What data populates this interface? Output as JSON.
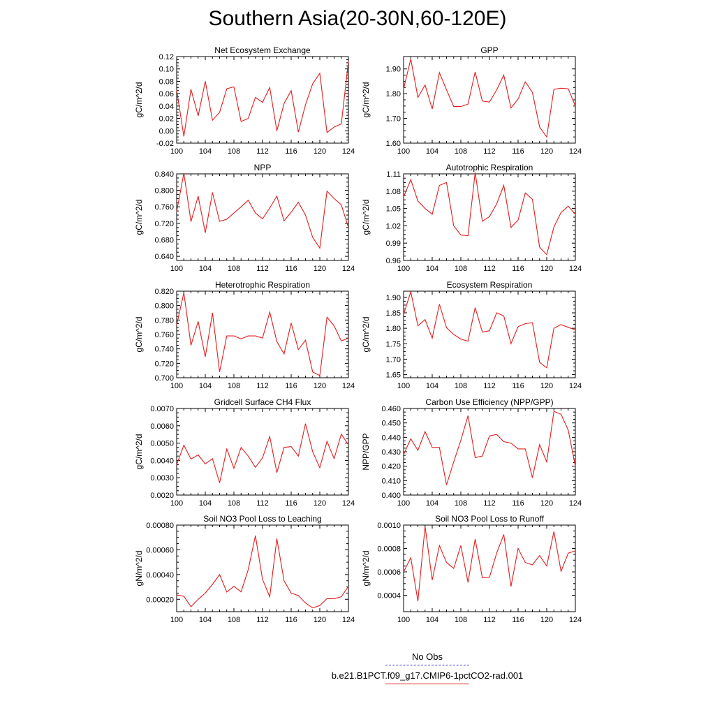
{
  "figure": {
    "title": "Southern Asia(20-30N,60-120E)",
    "legend": [
      {
        "label": "No Obs",
        "color": "#2a2ad8",
        "style": "dashed"
      },
      {
        "label": "b.e21.B1PCT.f09_g17.CMIP6-1pctCO2-rad.001",
        "color": "#e21d1d",
        "style": "solid"
      }
    ]
  },
  "chart_data": [
    {
      "type": "line",
      "title": "Net Ecosystem Exchange",
      "ylabel": "gC/m^2/d",
      "xlim": [
        100,
        124
      ],
      "ylim": [
        -0.02,
        0.12
      ],
      "xticks": [
        "100",
        "104",
        "108",
        "112",
        "116",
        "120",
        "124"
      ],
      "yticks": [
        "-0.02",
        "0.00",
        "0.02",
        "0.04",
        "0.06",
        "0.08",
        "0.10",
        "0.12"
      ],
      "x": [
        100,
        101,
        102,
        103,
        104,
        105,
        106,
        107,
        108,
        109,
        110,
        111,
        112,
        113,
        114,
        115,
        116,
        117,
        118,
        119,
        120,
        121,
        122,
        123,
        124
      ],
      "series": [
        {
          "color": "#e21d1d",
          "values": [
            0.066,
            -0.009,
            0.067,
            0.024,
            0.08,
            0.017,
            0.03,
            0.068,
            0.071,
            0.015,
            0.02,
            0.054,
            0.046,
            0.07,
            0.0,
            0.044,
            0.065,
            -0.002,
            0.042,
            0.076,
            0.093,
            -0.003,
            0.006,
            0.011,
            0.112
          ]
        }
      ]
    },
    {
      "type": "line",
      "title": "GPP",
      "ylabel": "gC/m^2/d",
      "xlim": [
        100,
        124
      ],
      "ylim": [
        1.6,
        1.95
      ],
      "xticks": [
        "100",
        "104",
        "108",
        "112",
        "116",
        "120",
        "124"
      ],
      "yticks": [
        "1.60",
        "1.70",
        "1.80",
        "1.90"
      ],
      "x": [
        100,
        101,
        102,
        103,
        104,
        105,
        106,
        107,
        108,
        109,
        110,
        111,
        112,
        113,
        114,
        115,
        116,
        117,
        118,
        119,
        120,
        121,
        122,
        123,
        124
      ],
      "series": [
        {
          "color": "#e21d1d",
          "values": [
            1.82,
            1.94,
            1.785,
            1.835,
            1.738,
            1.885,
            1.815,
            1.748,
            1.748,
            1.758,
            1.888,
            1.77,
            1.766,
            1.815,
            1.875,
            1.742,
            1.778,
            1.848,
            1.805,
            1.665,
            1.625,
            1.818,
            1.822,
            1.82,
            1.75
          ]
        }
      ]
    },
    {
      "type": "line",
      "title": "NPP",
      "ylabel": "gC/m^2/d",
      "xlim": [
        100,
        124
      ],
      "ylim": [
        0.63,
        0.84
      ],
      "xticks": [
        "100",
        "104",
        "108",
        "112",
        "116",
        "120",
        "124"
      ],
      "yticks": [
        "0.640",
        "0.680",
        "0.720",
        "0.760",
        "0.800",
        "0.840"
      ],
      "x": [
        100,
        101,
        102,
        103,
        104,
        105,
        106,
        107,
        108,
        109,
        110,
        111,
        112,
        113,
        114,
        115,
        116,
        117,
        118,
        119,
        120,
        121,
        122,
        123,
        124
      ],
      "series": [
        {
          "color": "#e21d1d",
          "values": [
            0.748,
            0.842,
            0.724,
            0.786,
            0.697,
            0.795,
            0.725,
            0.73,
            0.745,
            0.76,
            0.776,
            0.745,
            0.731,
            0.757,
            0.786,
            0.726,
            0.747,
            0.771,
            0.74,
            0.686,
            0.66,
            0.798,
            0.78,
            0.765,
            0.71
          ]
        }
      ]
    },
    {
      "type": "line",
      "title": "Autotrophic Respiration",
      "ylabel": "gC/m^2/d",
      "xlim": [
        100,
        124
      ],
      "ylim": [
        0.96,
        1.11
      ],
      "xticks": [
        "100",
        "104",
        "108",
        "112",
        "116",
        "120",
        "124"
      ],
      "yticks": [
        "0.96",
        "0.99",
        "1.02",
        "1.05",
        "1.08",
        "1.11"
      ],
      "x": [
        100,
        101,
        102,
        103,
        104,
        105,
        106,
        107,
        108,
        109,
        110,
        111,
        112,
        113,
        114,
        115,
        116,
        117,
        118,
        119,
        120,
        121,
        122,
        123,
        124
      ],
      "series": [
        {
          "color": "#e21d1d",
          "values": [
            1.07,
            1.1,
            1.063,
            1.05,
            1.04,
            1.09,
            1.095,
            1.02,
            1.004,
            1.003,
            1.112,
            1.028,
            1.036,
            1.058,
            1.09,
            1.017,
            1.03,
            1.077,
            1.066,
            0.983,
            0.97,
            1.018,
            1.043,
            1.054,
            1.04
          ]
        }
      ]
    },
    {
      "type": "line",
      "title": "Heterotrophic Respiration",
      "ylabel": "gC/m^2/d",
      "xlim": [
        100,
        124
      ],
      "ylim": [
        0.7,
        0.82
      ],
      "xticks": [
        "100",
        "104",
        "108",
        "112",
        "116",
        "120",
        "124"
      ],
      "yticks": [
        "0.700",
        "0.720",
        "0.740",
        "0.760",
        "0.780",
        "0.800",
        "0.820"
      ],
      "x": [
        100,
        101,
        102,
        103,
        104,
        105,
        106,
        107,
        108,
        109,
        110,
        111,
        112,
        113,
        114,
        115,
        116,
        117,
        118,
        119,
        120,
        121,
        122,
        123,
        124
      ],
      "series": [
        {
          "color": "#e21d1d",
          "values": [
            0.773,
            0.818,
            0.745,
            0.778,
            0.729,
            0.79,
            0.708,
            0.758,
            0.758,
            0.754,
            0.758,
            0.758,
            0.755,
            0.791,
            0.75,
            0.733,
            0.776,
            0.739,
            0.752,
            0.708,
            0.703,
            0.784,
            0.772,
            0.751,
            0.755
          ]
        }
      ]
    },
    {
      "type": "line",
      "title": "Ecosystem Respiration",
      "ylabel": "gC/m^2/d",
      "xlim": [
        100,
        124
      ],
      "ylim": [
        1.64,
        1.92
      ],
      "xticks": [
        "100",
        "104",
        "108",
        "112",
        "116",
        "120",
        "124"
      ],
      "yticks": [
        "1.65",
        "1.70",
        "1.75",
        "1.80",
        "1.85",
        "1.90"
      ],
      "x": [
        100,
        101,
        102,
        103,
        104,
        105,
        106,
        107,
        108,
        109,
        110,
        111,
        112,
        113,
        114,
        115,
        116,
        117,
        118,
        119,
        120,
        121,
        122,
        123,
        124
      ],
      "series": [
        {
          "color": "#e21d1d",
          "values": [
            1.845,
            1.918,
            1.808,
            1.828,
            1.768,
            1.878,
            1.802,
            1.78,
            1.765,
            1.758,
            1.867,
            1.788,
            1.792,
            1.85,
            1.84,
            1.75,
            1.805,
            1.815,
            1.818,
            1.69,
            1.672,
            1.8,
            1.812,
            1.803,
            1.795
          ]
        }
      ]
    },
    {
      "type": "line",
      "title": "Gridcell Surface CH4 Flux",
      "ylabel": "gC/m^2/d",
      "xlim": [
        100,
        124
      ],
      "ylim": [
        0.002,
        0.007
      ],
      "xticks": [
        "100",
        "104",
        "108",
        "112",
        "116",
        "120",
        "124"
      ],
      "yticks": [
        "0.0020",
        "0.0030",
        "0.0040",
        "0.0050",
        "0.0060",
        "0.0070"
      ],
      "x": [
        100,
        101,
        102,
        103,
        104,
        105,
        106,
        107,
        108,
        109,
        110,
        111,
        112,
        113,
        114,
        115,
        116,
        117,
        118,
        119,
        120,
        121,
        122,
        123,
        124
      ],
      "series": [
        {
          "color": "#e21d1d",
          "values": [
            0.00375,
            0.00488,
            0.00408,
            0.00432,
            0.0038,
            0.0041,
            0.0027,
            0.00466,
            0.00355,
            0.00475,
            0.00425,
            0.0036,
            0.00415,
            0.00538,
            0.0033,
            0.00475,
            0.0048,
            0.00425,
            0.00612,
            0.0045,
            0.00358,
            0.0051,
            0.0041,
            0.00552,
            0.0049
          ]
        }
      ]
    },
    {
      "type": "line",
      "title": "Carbon Use Efficiency (NPP/GPP)",
      "ylabel": "NPP/GPP",
      "xlim": [
        100,
        124
      ],
      "ylim": [
        0.4,
        0.46
      ],
      "xticks": [
        "100",
        "104",
        "108",
        "112",
        "116",
        "120",
        "124"
      ],
      "yticks": [
        "0.400",
        "0.410",
        "0.420",
        "0.430",
        "0.440",
        "0.450",
        "0.460"
      ],
      "x": [
        100,
        101,
        102,
        103,
        104,
        105,
        106,
        107,
        108,
        109,
        110,
        111,
        112,
        113,
        114,
        115,
        116,
        117,
        118,
        119,
        120,
        121,
        122,
        123,
        124
      ],
      "series": [
        {
          "color": "#e21d1d",
          "values": [
            0.428,
            0.439,
            0.431,
            0.444,
            0.433,
            0.433,
            0.407,
            0.423,
            0.438,
            0.455,
            0.426,
            0.427,
            0.441,
            0.442,
            0.437,
            0.436,
            0.432,
            0.432,
            0.412,
            0.435,
            0.423,
            0.458,
            0.456,
            0.445,
            0.42
          ]
        }
      ]
    },
    {
      "type": "line",
      "title": "Soil NO3 Pool Loss to Leaching",
      "ylabel": "gN/m^2/d",
      "xlim": [
        100,
        124
      ],
      "ylim": [
        0.0001,
        0.0008
      ],
      "xticks": [
        "100",
        "104",
        "108",
        "112",
        "116",
        "120",
        "124"
      ],
      "yticks": [
        "0.00020",
        "0.00040",
        "0.00060",
        "0.00080"
      ],
      "x": [
        100,
        101,
        102,
        103,
        104,
        105,
        106,
        107,
        108,
        109,
        110,
        111,
        112,
        113,
        114,
        115,
        116,
        117,
        118,
        119,
        120,
        121,
        122,
        123,
        124
      ],
      "series": [
        {
          "color": "#e21d1d",
          "values": [
            0.000235,
            0.000225,
            0.00014,
            0.0002,
            0.00025,
            0.00032,
            0.0004,
            0.000258,
            0.000305,
            0.00026,
            0.00044,
            0.000715,
            0.00036,
            0.00022,
            0.00069,
            0.00035,
            0.00025,
            0.00023,
            0.00017,
            0.00013,
            0.00015,
            0.000205,
            0.000205,
            0.00022,
            0.000305
          ]
        }
      ]
    },
    {
      "type": "line",
      "title": "Soil NO3 Pool Loss to Runoff",
      "ylabel": "gN/m^2/d",
      "xlim": [
        100,
        124
      ],
      "ylim": [
        0.00026,
        0.001
      ],
      "xticks": [
        "100",
        "104",
        "108",
        "112",
        "116",
        "120",
        "124"
      ],
      "yticks": [
        "0.0004",
        "0.0006",
        "0.0008",
        "0.0010"
      ],
      "x": [
        100,
        101,
        102,
        103,
        104,
        105,
        106,
        107,
        108,
        109,
        110,
        111,
        112,
        113,
        114,
        115,
        116,
        117,
        118,
        119,
        120,
        121,
        122,
        123,
        124
      ],
      "series": [
        {
          "color": "#e21d1d",
          "values": [
            0.0006,
            0.00072,
            0.00035,
            0.00099,
            0.00053,
            0.000825,
            0.00068,
            0.00063,
            0.000825,
            0.00051,
            0.00088,
            0.00055,
            0.000555,
            0.00076,
            0.00092,
            0.000475,
            0.0008,
            0.00068,
            0.00066,
            0.00074,
            0.00065,
            0.000945,
            0.000605,
            0.00076,
            0.00078
          ]
        }
      ]
    }
  ]
}
